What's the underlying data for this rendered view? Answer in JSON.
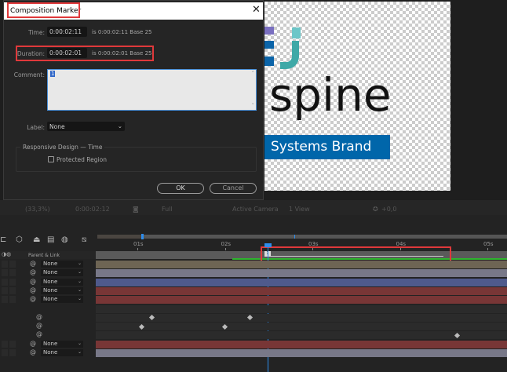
{
  "dialog": {
    "title": "Composition Marker",
    "time_label": "Time:",
    "time_value": "0:00:02:11",
    "time_info": "is 0:00:02:11  Base 25",
    "duration_label": "Duration:",
    "duration_value": "0:00:02:01",
    "duration_info": "is 0:00:02:01  Base 25",
    "comment_label": "Comment:",
    "comment_value": "1",
    "label_label": "Label:",
    "label_value": "None",
    "group_title": "Responsive Design — Time",
    "protected_region": "Protected Region",
    "protected_checked": false,
    "ok": "OK",
    "cancel": "Cancel"
  },
  "preview": {
    "logo_text": "spine",
    "brand_text": "Systems Brand",
    "brand_color": "#0066aa"
  },
  "viewer_toolbar": {
    "zoom": "(33,3%)",
    "time": "0:00:02:12",
    "resolution": "Full",
    "camera": "Active Camera",
    "views": "1 View",
    "exposure": "+0,0"
  },
  "timeline": {
    "ruler_ticks": [
      "01s",
      "02s",
      "03s",
      "04s",
      "05s"
    ],
    "parent_header": "Parent & Link",
    "layers": [
      {
        "parent": "None",
        "color": "#6e6554"
      },
      {
        "parent": "None",
        "color": "#787888"
      },
      {
        "parent": "None",
        "color": "#4f5a8c"
      },
      {
        "parent": "None",
        "color": "#783636"
      },
      {
        "parent": "None",
        "color": "#783636"
      },
      {
        "parent": null,
        "color": "#2b2b2b"
      },
      {
        "parent": null,
        "color": "#2b2b2b"
      },
      {
        "parent": null,
        "color": "#2b2b2b"
      },
      {
        "parent": null,
        "color": "#2b2b2b"
      },
      {
        "parent": "None",
        "color": "#783636"
      },
      {
        "parent": "None",
        "color": "#787888"
      }
    ],
    "marker_comment": "1",
    "accent": "#2d8ceb",
    "highlight": "#e0393b"
  }
}
